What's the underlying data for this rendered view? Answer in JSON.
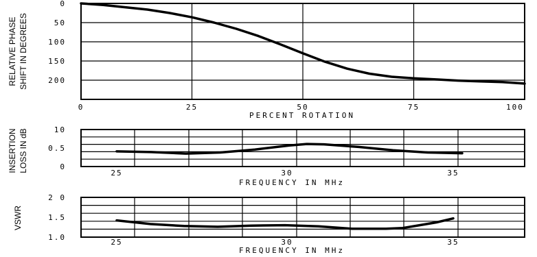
{
  "chart_data": [
    {
      "type": "line",
      "xlabel": "PERCENT ROTATION",
      "ylabel": [
        "RELATIVE PHASE",
        "SHIFT IN DEGREES"
      ],
      "xlim": [
        0,
        100
      ],
      "ylim": [
        0,
        250
      ],
      "y_inverted": true,
      "x_ticks": [
        "0",
        "25",
        "50",
        "75",
        "100"
      ],
      "y_ticks": [
        "0",
        "50",
        "100",
        "150",
        "200"
      ],
      "grid": true,
      "series": [
        {
          "x": [
            0,
            5,
            10,
            15,
            20,
            25,
            30,
            35,
            40,
            45,
            50,
            55,
            60,
            65,
            70,
            75,
            80,
            85,
            90,
            95,
            100
          ],
          "y": [
            0,
            4,
            10,
            16,
            25,
            36,
            50,
            66,
            85,
            107,
            130,
            152,
            170,
            183,
            191,
            195,
            198,
            201,
            203,
            205,
            209
          ]
        }
      ]
    },
    {
      "type": "line",
      "xlabel": "FREQUENCY IN MHz",
      "ylabel": [
        "INSERTION",
        "LOSS IN dB"
      ],
      "xlim": [
        25,
        37
      ],
      "ylim": [
        0,
        1.0
      ],
      "x_ticks": [
        "25",
        "30",
        "35"
      ],
      "y_ticks": [
        "0",
        "0.5",
        "10"
      ],
      "grid": true,
      "series": [
        {
          "x": [
            25,
            26,
            27,
            28,
            29,
            30,
            30.5,
            31,
            32,
            33,
            34,
            35
          ],
          "y": [
            0.41,
            0.39,
            0.35,
            0.38,
            0.46,
            0.57,
            0.61,
            0.6,
            0.53,
            0.44,
            0.38,
            0.36
          ]
        }
      ]
    },
    {
      "type": "line",
      "xlabel": "FREQUENCY IN MHz",
      "ylabel": [
        "VSWR"
      ],
      "xlim": [
        24,
        36
      ],
      "ylim": [
        1.0,
        2.0
      ],
      "x_ticks": [
        "25",
        "30",
        "35"
      ],
      "y_ticks": [
        "1.0",
        "1.5",
        "2 0"
      ],
      "grid": true,
      "series": [
        {
          "x": [
            25,
            26,
            27,
            28,
            29,
            30,
            31,
            32,
            33,
            33.5,
            34,
            34.5,
            35
          ],
          "y": [
            1.42,
            1.33,
            1.28,
            1.26,
            1.29,
            1.3,
            1.27,
            1.21,
            1.21,
            1.23,
            1.3,
            1.37,
            1.47
          ]
        }
      ]
    }
  ]
}
